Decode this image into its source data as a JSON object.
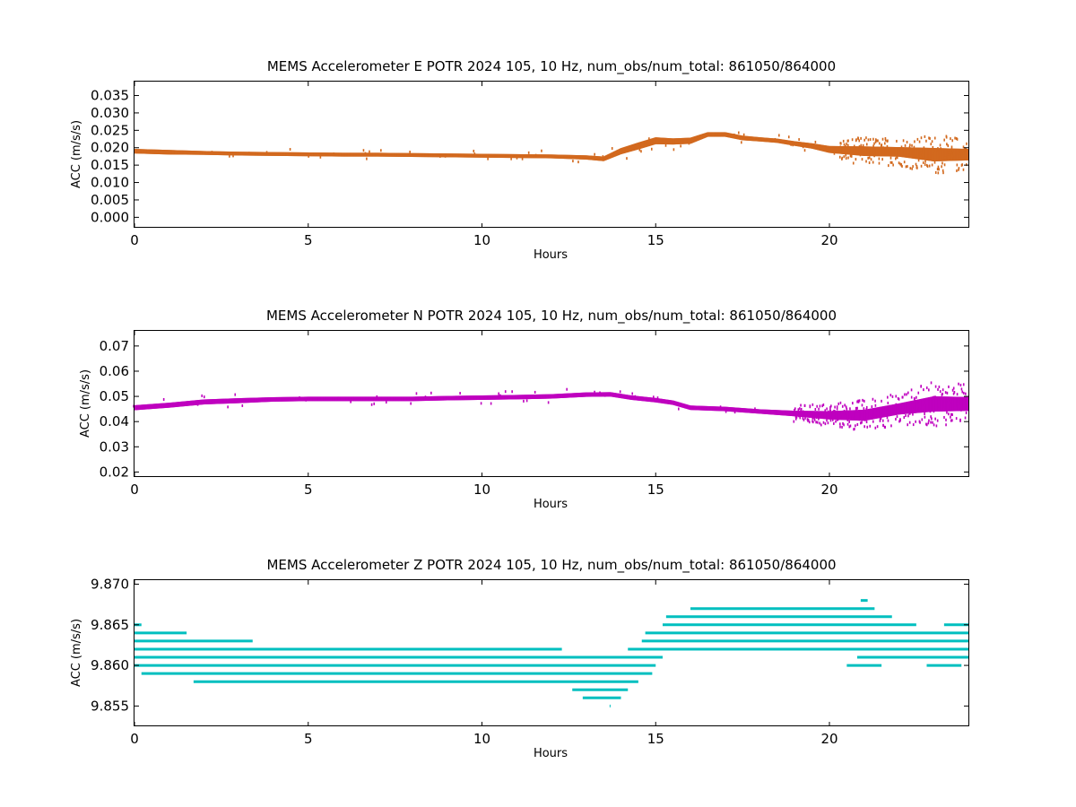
{
  "chart_data": [
    {
      "type": "scatter",
      "title": "MEMS Accelerometer E POTR 2024 105, 10 Hz, num_obs/num_total: 861050/864000",
      "xlabel": "Hours",
      "ylabel": "ACC (m/s/s)",
      "xlim": [
        0,
        24
      ],
      "ylim": [
        -0.003,
        0.039
      ],
      "xticks": [
        "0",
        "5",
        "10",
        "15",
        "20"
      ],
      "xtick_values": [
        0,
        5,
        10,
        15,
        20
      ],
      "yticks": [
        "0.000",
        "0.005",
        "0.010",
        "0.015",
        "0.020",
        "0.025",
        "0.030",
        "0.035"
      ],
      "ytick_values": [
        0.0,
        0.005,
        0.01,
        0.015,
        0.02,
        0.025,
        0.03,
        0.035
      ],
      "color": "#d2691e",
      "series": [
        {
          "x": [
            0,
            1,
            2,
            3,
            4,
            5,
            6,
            7,
            8,
            9,
            10,
            11,
            12,
            13,
            13.5,
            14,
            14.5,
            15,
            15.5,
            16,
            16.5,
            17,
            17.5,
            18,
            18.5,
            19,
            19.5,
            20,
            21,
            22,
            23,
            24
          ],
          "y": [
            0.019,
            0.0187,
            0.0185,
            0.0183,
            0.0182,
            0.0181,
            0.018,
            0.018,
            0.0179,
            0.0178,
            0.0177,
            0.0176,
            0.0175,
            0.0172,
            0.0168,
            0.019,
            0.0205,
            0.022,
            0.0218,
            0.022,
            0.0238,
            0.0238,
            0.0228,
            0.0224,
            0.022,
            0.0212,
            0.0205,
            0.0195,
            0.019,
            0.0188,
            0.018,
            0.018
          ],
          "spread": [
            0.0012,
            0.0012,
            0.001,
            0.001,
            0.001,
            0.001,
            0.001,
            0.001,
            0.001,
            0.001,
            0.001,
            0.001,
            0.001,
            0.0011,
            0.0012,
            0.0016,
            0.0018,
            0.0018,
            0.0016,
            0.0016,
            0.0012,
            0.0012,
            0.0012,
            0.0011,
            0.0011,
            0.0012,
            0.0014,
            0.0018,
            0.0025,
            0.0025,
            0.0035,
            0.003
          ]
        }
      ]
    },
    {
      "type": "scatter",
      "title": "MEMS Accelerometer N POTR 2024 105, 10 Hz, num_obs/num_total: 861050/864000",
      "xlabel": "Hours",
      "ylabel": "ACC (m/s/s)",
      "xlim": [
        0,
        24
      ],
      "ylim": [
        0.018,
        0.076
      ],
      "xticks": [
        "0",
        "5",
        "10",
        "15",
        "20"
      ],
      "xtick_values": [
        0,
        5,
        10,
        15,
        20
      ],
      "yticks": [
        "0.02",
        "0.03",
        "0.04",
        "0.05",
        "0.06",
        "0.07"
      ],
      "ytick_values": [
        0.02,
        0.03,
        0.04,
        0.05,
        0.06,
        0.07
      ],
      "color": "#bf00bf",
      "series": [
        {
          "x": [
            0,
            1,
            2,
            3,
            4,
            5,
            6,
            7,
            8,
            9,
            10,
            11,
            12,
            13,
            13.7,
            14.3,
            15,
            15.5,
            16,
            17,
            18,
            19,
            20,
            21,
            22,
            23,
            24
          ],
          "y": [
            0.0455,
            0.0465,
            0.0478,
            0.0483,
            0.0488,
            0.049,
            0.049,
            0.049,
            0.049,
            0.0493,
            0.0495,
            0.0497,
            0.05,
            0.0507,
            0.0508,
            0.0495,
            0.0485,
            0.0475,
            0.0455,
            0.045,
            0.044,
            0.0432,
            0.0425,
            0.0425,
            0.045,
            0.047,
            0.047
          ],
          "spread": [
            0.0018,
            0.0018,
            0.0018,
            0.0018,
            0.0016,
            0.0016,
            0.0016,
            0.0016,
            0.0016,
            0.0016,
            0.0016,
            0.0016,
            0.0016,
            0.0016,
            0.0016,
            0.0016,
            0.0016,
            0.0016,
            0.0016,
            0.0016,
            0.0016,
            0.002,
            0.003,
            0.004,
            0.004,
            0.0055,
            0.005
          ]
        }
      ]
    },
    {
      "type": "scatter",
      "title": "MEMS Accelerometer Z POTR 2024 105, 10 Hz, num_obs/num_total: 861050/864000",
      "xlabel": "Hours",
      "ylabel": "ACC (m/s/s)",
      "xlim": [
        0,
        24
      ],
      "ylim": [
        9.8525,
        9.8705
      ],
      "xticks": [
        "0",
        "5",
        "10",
        "15",
        "20"
      ],
      "xtick_values": [
        0,
        5,
        10,
        15,
        20
      ],
      "yticks": [
        "9.855",
        "9.860",
        "9.865",
        "9.870"
      ],
      "ytick_values": [
        9.855,
        9.86,
        9.865,
        9.87
      ],
      "color": "#00bfbf",
      "levels": [
        {
          "y": 9.855,
          "segments": [
            [
              13.7,
              13.7
            ]
          ]
        },
        {
          "y": 9.856,
          "segments": [
            [
              12.9,
              14.0
            ]
          ]
        },
        {
          "y": 9.857,
          "segments": [
            [
              12.6,
              14.2
            ]
          ]
        },
        {
          "y": 9.858,
          "segments": [
            [
              1.7,
              14.5
            ]
          ]
        },
        {
          "y": 9.859,
          "segments": [
            [
              0.2,
              14.9
            ]
          ]
        },
        {
          "y": 9.86,
          "segments": [
            [
              0,
              15.0
            ],
            [
              20.5,
              21.5
            ],
            [
              22.8,
              23.8
            ]
          ]
        },
        {
          "y": 9.861,
          "segments": [
            [
              0,
              15.2
            ],
            [
              20.8,
              24
            ]
          ]
        },
        {
          "y": 9.862,
          "segments": [
            [
              0,
              12.3
            ],
            [
              14.2,
              24
            ]
          ]
        },
        {
          "y": 9.863,
          "segments": [
            [
              0,
              3.4
            ],
            [
              14.6,
              24
            ]
          ]
        },
        {
          "y": 9.864,
          "segments": [
            [
              0,
              1.5
            ],
            [
              14.7,
              24
            ]
          ]
        },
        {
          "y": 9.865,
          "segments": [
            [
              0,
              0.2
            ],
            [
              15.2,
              22.5
            ],
            [
              23.3,
              24
            ]
          ]
        },
        {
          "y": 9.866,
          "segments": [
            [
              15.3,
              21.8
            ]
          ]
        },
        {
          "y": 9.867,
          "segments": [
            [
              16.0,
              21.3
            ]
          ]
        },
        {
          "y": 9.868,
          "segments": [
            [
              20.9,
              21.1
            ]
          ]
        }
      ]
    }
  ]
}
